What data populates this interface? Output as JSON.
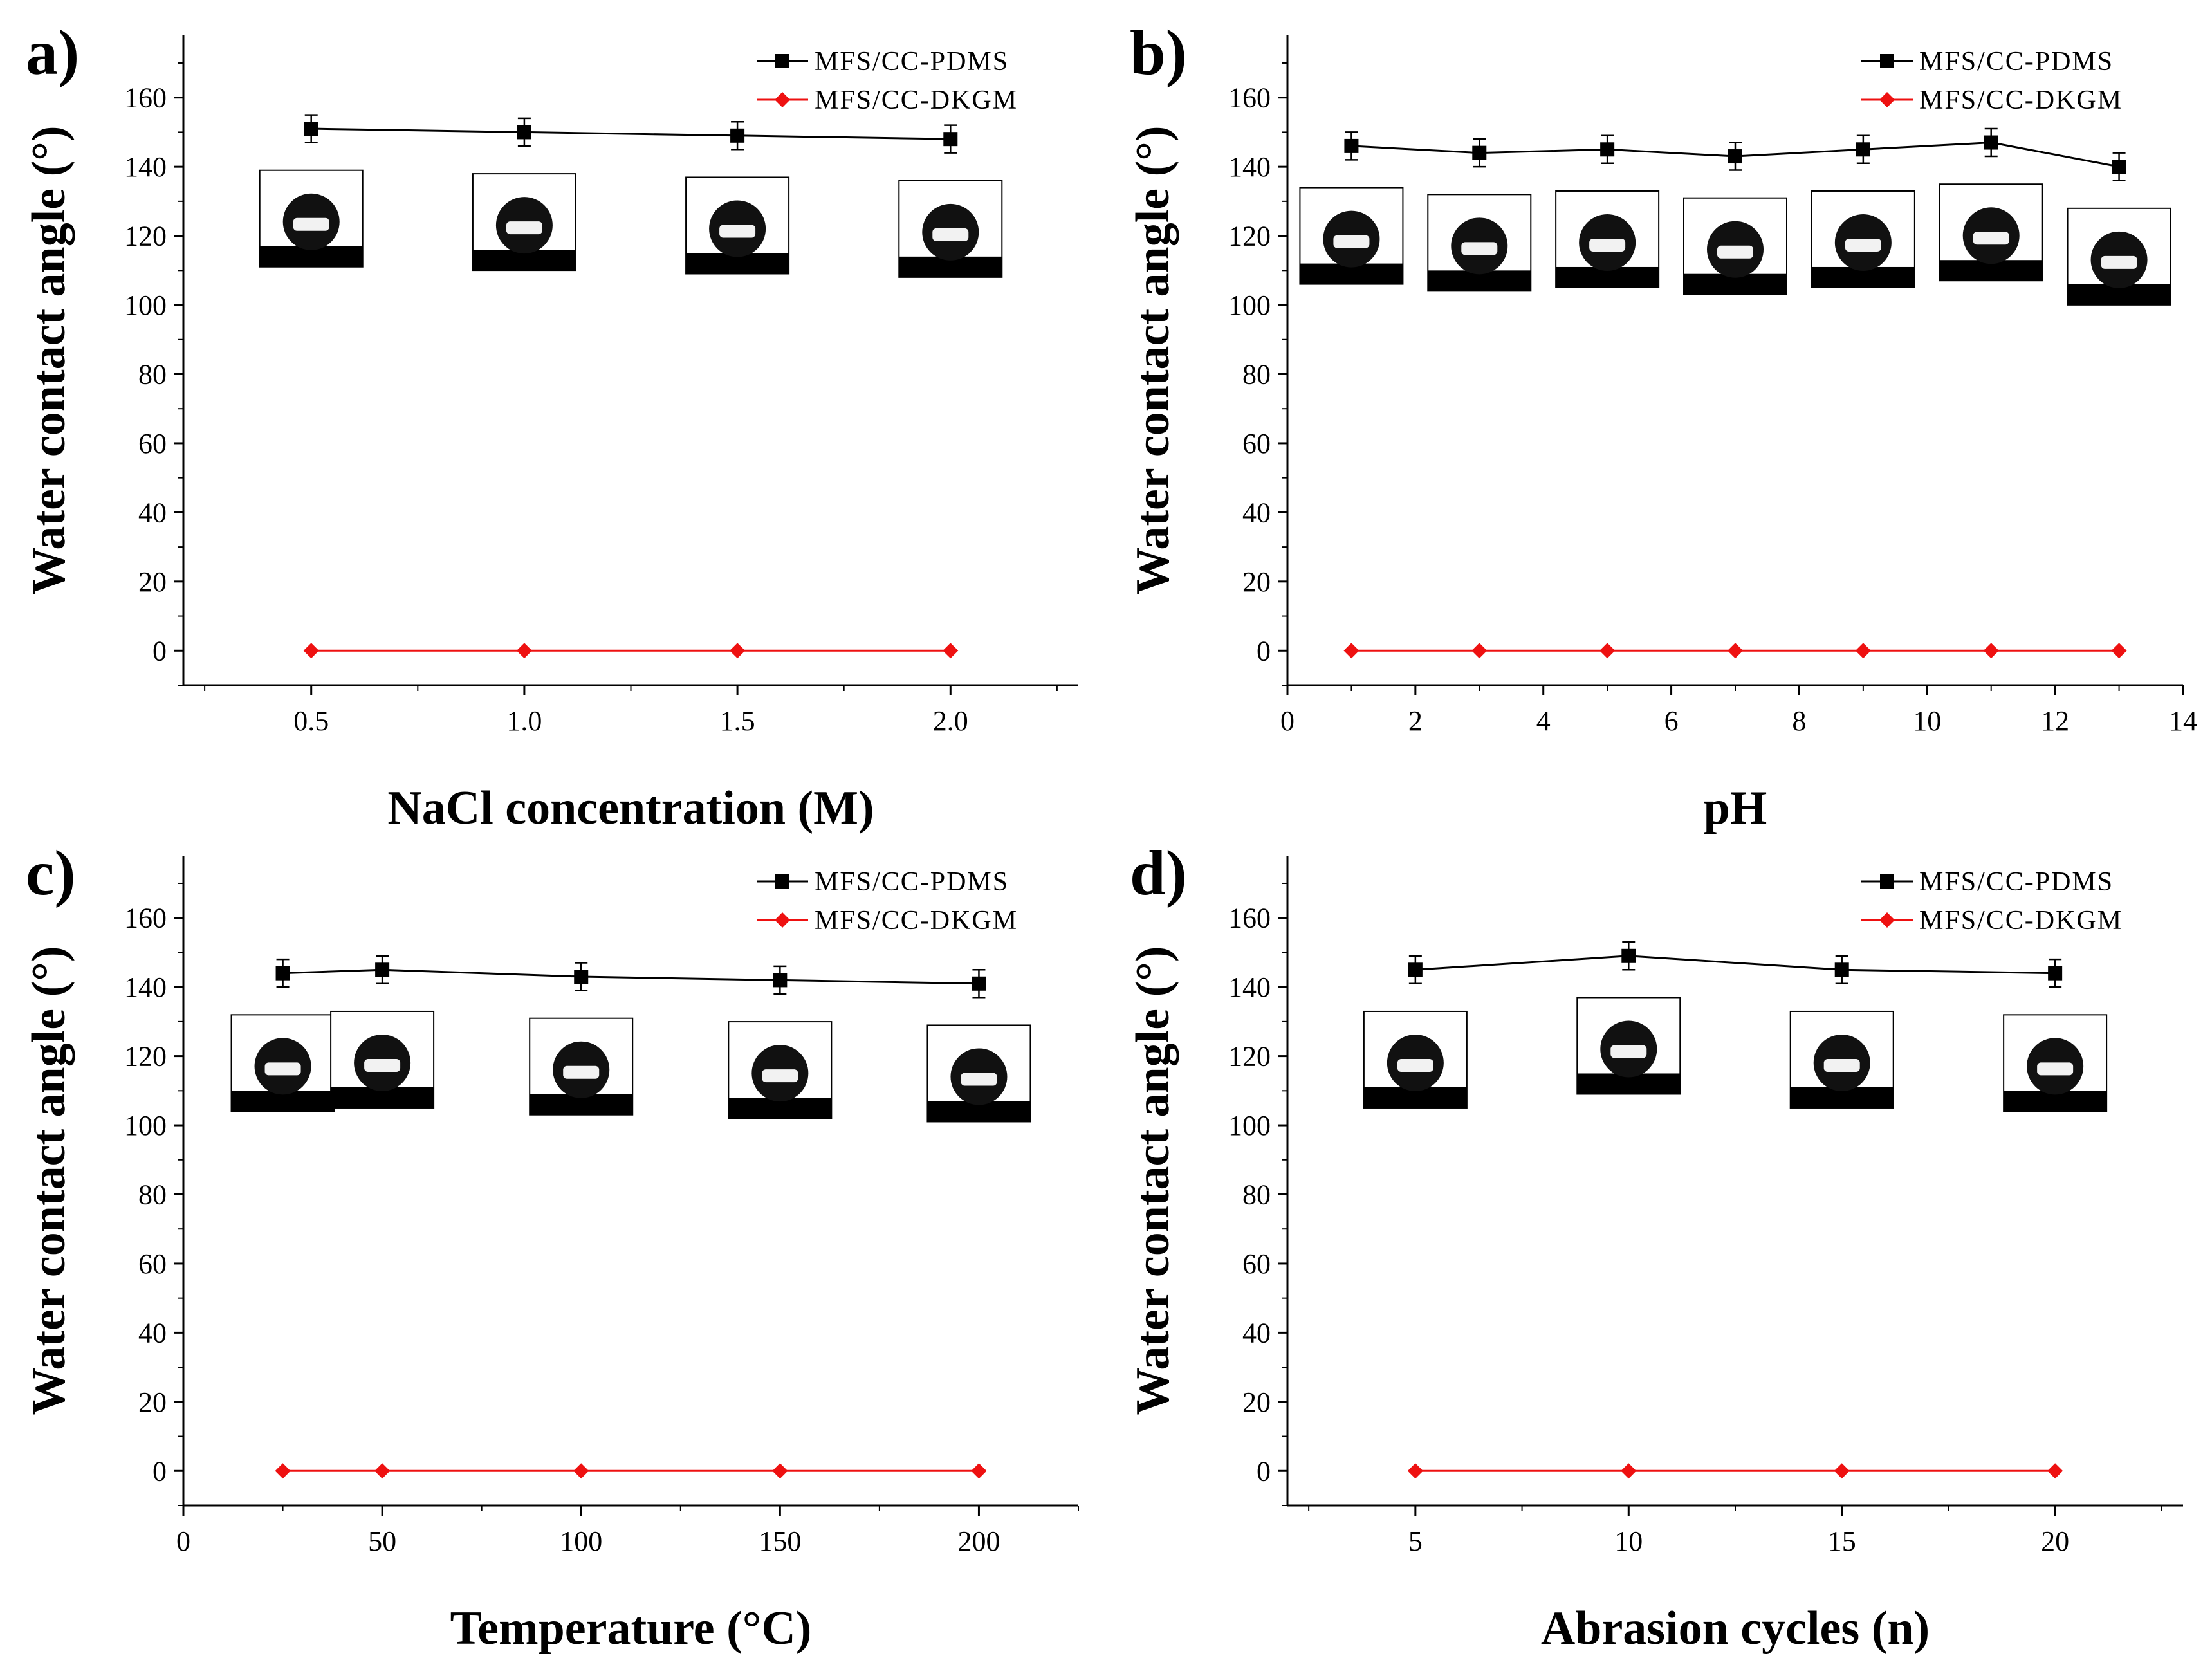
{
  "colors": {
    "pdms": "#000000",
    "dkgm": "#ee1111",
    "axis": "#000000",
    "droplet_substrate": "#000000"
  },
  "chart_data": [
    {
      "type": "line",
      "panel_label": "a)",
      "xlabel": "NaCl concentration (M)",
      "ylabel": "Water contact angle (°)",
      "xlim": [
        0.2,
        2.3
      ],
      "ylim": [
        -10,
        178
      ],
      "xticks": [
        0.5,
        1.0,
        1.5,
        2.0
      ],
      "xtick_labels": [
        "0.5",
        "1.0",
        "1.5",
        "2.0"
      ],
      "yticks": [
        0,
        20,
        40,
        60,
        80,
        100,
        120,
        140,
        160
      ],
      "ytick_labels": [
        "0",
        "20",
        "40",
        "60",
        "80",
        "100",
        "120",
        "140",
        "160"
      ],
      "legend_position": "top-right",
      "grid": false,
      "series": [
        {
          "name": "MFS/CC-PDMS",
          "marker": "square",
          "x": [
            0.5,
            1.0,
            1.5,
            2.0
          ],
          "y": [
            151,
            150,
            149,
            148
          ],
          "err": [
            4,
            4,
            4,
            4
          ]
        },
        {
          "name": "MFS/CC-DKGM",
          "marker": "diamond",
          "x": [
            0.5,
            1.0,
            1.5,
            2.0
          ],
          "y": [
            0,
            0,
            0,
            0
          ]
        }
      ],
      "droplet_insets": [
        {
          "x": 0.5,
          "angle": 151
        },
        {
          "x": 1.0,
          "angle": 150
        },
        {
          "x": 1.5,
          "angle": 149
        },
        {
          "x": 2.0,
          "angle": 148
        }
      ]
    },
    {
      "type": "line",
      "panel_label": "b)",
      "xlabel": "pH",
      "ylabel": "Water contact angle (°)",
      "xlim": [
        0,
        14
      ],
      "ylim": [
        -10,
        178
      ],
      "xticks": [
        0,
        2,
        4,
        6,
        8,
        10,
        12,
        14
      ],
      "xtick_labels": [
        "0",
        "2",
        "4",
        "6",
        "8",
        "10",
        "12",
        "14"
      ],
      "yticks": [
        0,
        20,
        40,
        60,
        80,
        100,
        120,
        140,
        160
      ],
      "ytick_labels": [
        "0",
        "20",
        "40",
        "60",
        "80",
        "100",
        "120",
        "140",
        "160"
      ],
      "legend_position": "top-right",
      "grid": false,
      "series": [
        {
          "name": "MFS/CC-PDMS",
          "marker": "square",
          "x": [
            1,
            3,
            5,
            7,
            9,
            11,
            13
          ],
          "y": [
            146,
            144,
            145,
            143,
            145,
            147,
            140
          ],
          "err": [
            4,
            4,
            4,
            4,
            4,
            4,
            4
          ]
        },
        {
          "name": "MFS/CC-DKGM",
          "marker": "diamond",
          "x": [
            1,
            3,
            5,
            7,
            9,
            11,
            13
          ],
          "y": [
            0,
            0,
            0,
            0,
            0,
            0,
            0
          ]
        }
      ],
      "droplet_insets": [
        {
          "x": 1,
          "angle": 146
        },
        {
          "x": 3,
          "angle": 144
        },
        {
          "x": 5,
          "angle": 145
        },
        {
          "x": 7,
          "angle": 143
        },
        {
          "x": 9,
          "angle": 145
        },
        {
          "x": 11,
          "angle": 147
        },
        {
          "x": 13,
          "angle": 140
        }
      ]
    },
    {
      "type": "line",
      "panel_label": "c)",
      "xlabel": "Temperature (°C)",
      "ylabel": "Water contact angle (°)",
      "xlim": [
        0,
        225
      ],
      "ylim": [
        -10,
        178
      ],
      "xticks": [
        0,
        50,
        100,
        150,
        200
      ],
      "xtick_labels": [
        "0",
        "50",
        "100",
        "150",
        "200"
      ],
      "yticks": [
        0,
        20,
        40,
        60,
        80,
        100,
        120,
        140,
        160
      ],
      "ytick_labels": [
        "0",
        "20",
        "40",
        "60",
        "80",
        "100",
        "120",
        "140",
        "160"
      ],
      "legend_position": "top-right",
      "grid": false,
      "series": [
        {
          "name": "MFS/CC-PDMS",
          "marker": "square",
          "x": [
            25,
            50,
            100,
            150,
            200
          ],
          "y": [
            144,
            145,
            143,
            142,
            141
          ],
          "err": [
            4,
            4,
            4,
            4,
            4
          ]
        },
        {
          "name": "MFS/CC-DKGM",
          "marker": "diamond",
          "x": [
            25,
            50,
            100,
            150,
            200
          ],
          "y": [
            0,
            0,
            0,
            0,
            0
          ]
        }
      ],
      "droplet_insets": [
        {
          "x": 25,
          "angle": 144
        },
        {
          "x": 50,
          "angle": 145
        },
        {
          "x": 100,
          "angle": 143
        },
        {
          "x": 150,
          "angle": 142
        },
        {
          "x": 200,
          "angle": 141
        }
      ]
    },
    {
      "type": "line",
      "panel_label": "d)",
      "xlabel": "Abrasion cycles (n)",
      "ylabel": "Water contact angle (°)",
      "xlim": [
        2,
        23
      ],
      "ylim": [
        -10,
        178
      ],
      "xticks": [
        5,
        10,
        15,
        20
      ],
      "xtick_labels": [
        "5",
        "10",
        "15",
        "20"
      ],
      "yticks": [
        0,
        20,
        40,
        60,
        80,
        100,
        120,
        140,
        160
      ],
      "ytick_labels": [
        "0",
        "20",
        "40",
        "60",
        "80",
        "100",
        "120",
        "140",
        "160"
      ],
      "legend_position": "top-right",
      "grid": false,
      "series": [
        {
          "name": "MFS/CC-PDMS",
          "marker": "square",
          "x": [
            5,
            10,
            15,
            20
          ],
          "y": [
            145,
            149,
            145,
            144
          ],
          "err": [
            4,
            4,
            4,
            4
          ]
        },
        {
          "name": "MFS/CC-DKGM",
          "marker": "diamond",
          "x": [
            5,
            10,
            15,
            20
          ],
          "y": [
            0,
            0,
            0,
            0
          ]
        }
      ],
      "droplet_insets": [
        {
          "x": 5,
          "angle": 145
        },
        {
          "x": 10,
          "angle": 149
        },
        {
          "x": 15,
          "angle": 145
        },
        {
          "x": 20,
          "angle": 144
        }
      ]
    }
  ]
}
